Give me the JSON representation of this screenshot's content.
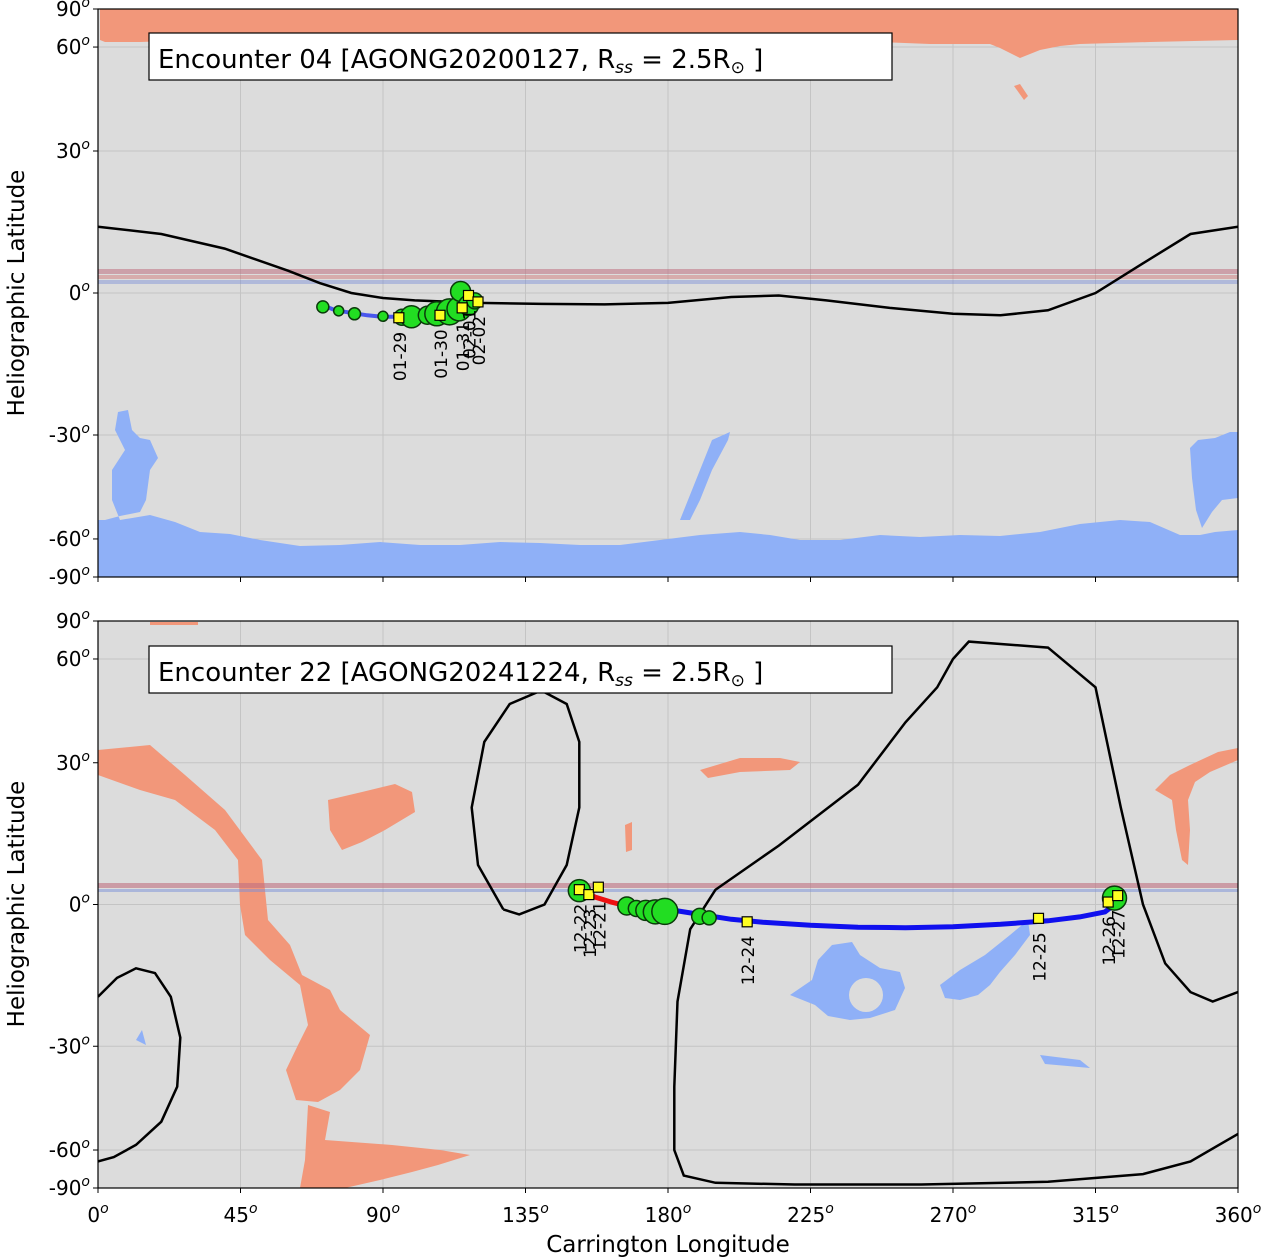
{
  "figure": {
    "xlabel": "Carrington Longitude",
    "ylabel": "Heliographic Latitude",
    "x_tick_values": [
      0,
      45,
      90,
      135,
      180,
      225,
      270,
      315,
      360
    ],
    "y_tick_values": [
      90,
      60,
      30,
      0,
      -30,
      -60,
      -90
    ],
    "tick_suffix": "o",
    "colors": {
      "background": "#dcdcdc",
      "grid": "#c4c4c4",
      "positive_polarity": "#f2977a",
      "negative_polarity": "#8fb0f7",
      "neutral_line": "#000000",
      "trajectory_outbound": "#1010ee",
      "trajectory_inbound": "#ee1010",
      "footpoint_marker": "#22dd22",
      "date_marker": "#ffff22"
    }
  },
  "chart_data": [
    {
      "type": "scatter",
      "panel": "top",
      "title": "Encounter 04 [AGONG20200127, R",
      "title_sub": "ss",
      "title_mid": " = 2.5R",
      "title_sym": "⊙",
      "title_end": " ]",
      "xlim": [
        0,
        360
      ],
      "ylim": [
        -90,
        90
      ],
      "neutral_line": [
        [
          0,
          13.5
        ],
        [
          20,
          12
        ],
        [
          40,
          9
        ],
        [
          60,
          4.5
        ],
        [
          70,
          2
        ],
        [
          80,
          0
        ],
        [
          90,
          -1
        ],
        [
          100,
          -1.5
        ],
        [
          120,
          -2
        ],
        [
          140,
          -2.2
        ],
        [
          160,
          -2.3
        ],
        [
          180,
          -2
        ],
        [
          200,
          -0.8
        ],
        [
          215,
          -0.5
        ],
        [
          230,
          -1.5
        ],
        [
          250,
          -3
        ],
        [
          270,
          -4.2
        ],
        [
          285,
          -4.5
        ],
        [
          300,
          -3.5
        ],
        [
          315,
          0
        ],
        [
          330,
          6
        ],
        [
          345,
          12
        ],
        [
          360,
          13.5
        ]
      ],
      "trajectory": [
        [
          71,
          -2.5
        ],
        [
          75,
          -3.5
        ],
        [
          80,
          -4
        ],
        [
          85,
          -4.5
        ],
        [
          90,
          -4.8
        ],
        [
          95,
          -4.8
        ],
        [
          100,
          -4.6
        ],
        [
          105,
          -4.3
        ],
        [
          110,
          -3.8
        ],
        [
          113,
          -3.3
        ],
        [
          116,
          -2.8
        ],
        [
          119,
          -2
        ],
        [
          121,
          -1.2
        ]
      ],
      "footpoints": [
        {
          "lon": 71,
          "lat": -2.8,
          "r": 6
        },
        {
          "lon": 76,
          "lat": -3.6,
          "r": 5
        },
        {
          "lon": 81,
          "lat": -4.2,
          "r": 6
        },
        {
          "lon": 90,
          "lat": -4.7,
          "r": 5
        },
        {
          "lon": 96,
          "lat": -4.9,
          "r": 8
        },
        {
          "lon": 99,
          "lat": -4.8,
          "r": 11
        },
        {
          "lon": 104,
          "lat": -4.5,
          "r": 9
        },
        {
          "lon": 107,
          "lat": -4.2,
          "r": 12
        },
        {
          "lon": 111,
          "lat": -3.8,
          "r": 13
        },
        {
          "lon": 114,
          "lat": -3.2,
          "r": 12
        },
        {
          "lon": 114.5,
          "lat": 0.3,
          "r": 10
        },
        {
          "lon": 117,
          "lat": -2.5,
          "r": 10
        },
        {
          "lon": 119,
          "lat": -1.6,
          "r": 8
        }
      ],
      "dates": [
        {
          "lon": 95,
          "lat": -5,
          "label": "01-29"
        },
        {
          "lon": 108,
          "lat": -4.5,
          "label": "01-30"
        },
        {
          "lon": 115,
          "lat": -3,
          "label": "01-31"
        },
        {
          "lon": 117,
          "lat": -0.5,
          "label": "02-01"
        },
        {
          "lon": 120,
          "lat": -1.8,
          "label": "02-02"
        }
      ]
    },
    {
      "type": "scatter",
      "panel": "bottom",
      "title": "Encounter 22 [AGONG20241224, R",
      "title_sub": "ss",
      "title_mid": " = 2.5R",
      "title_sym": "⊙",
      "title_end": " ]",
      "xlim": [
        0,
        360
      ],
      "ylim": [
        -90,
        90
      ],
      "neutral_line_segments": [
        [
          [
            128,
            -1
          ],
          [
            120,
            8
          ],
          [
            118,
            20
          ],
          [
            122,
            35
          ],
          [
            130,
            45
          ],
          [
            140,
            49
          ],
          [
            148,
            45
          ],
          [
            152,
            35
          ],
          [
            152,
            20
          ],
          [
            148,
            8
          ],
          [
            141,
            0
          ],
          [
            133,
            -2
          ],
          [
            128,
            -1
          ]
        ],
        [
          [
            0,
            -19
          ],
          [
            6,
            -15
          ],
          [
            12,
            -13
          ],
          [
            18,
            -14
          ],
          [
            23,
            -19
          ],
          [
            26,
            -28
          ],
          [
            25,
            -40
          ],
          [
            20,
            -50
          ],
          [
            12,
            -58
          ],
          [
            5,
            -63
          ],
          [
            0,
            -65
          ]
        ],
        [
          [
            360,
            -54
          ],
          [
            345,
            -65
          ],
          [
            330,
            -72
          ],
          [
            300,
            -78
          ],
          [
            260,
            -81
          ],
          [
            220,
            -81
          ],
          [
            195,
            -79
          ],
          [
            185,
            -73
          ],
          [
            182,
            -60
          ],
          [
            182,
            -40
          ],
          [
            183,
            -20
          ],
          [
            187,
            -5
          ],
          [
            195,
            3
          ],
          [
            215,
            12
          ],
          [
            240,
            25
          ],
          [
            255,
            40
          ],
          [
            265,
            50
          ],
          [
            270,
            60
          ],
          [
            275,
            68
          ],
          [
            300,
            65
          ],
          [
            315,
            50
          ],
          [
            323,
            20
          ],
          [
            330,
            0
          ],
          [
            337,
            -12
          ],
          [
            345,
            -18
          ],
          [
            352,
            -20
          ],
          [
            360,
            -18
          ]
        ]
      ],
      "trajectory_inbound": [
        [
          153,
          2.5
        ],
        [
          157,
          1.5
        ],
        [
          162,
          0.5
        ],
        [
          167,
          -0.3
        ],
        [
          172,
          -0.7
        ],
        [
          177,
          -0.8
        ],
        [
          180,
          -1
        ]
      ],
      "trajectory_outbound": [
        [
          180,
          -1
        ],
        [
          190,
          -2
        ],
        [
          200,
          -3
        ],
        [
          210,
          -3.6
        ],
        [
          225,
          -4.2
        ],
        [
          240,
          -4.6
        ],
        [
          255,
          -4.7
        ],
        [
          270,
          -4.5
        ],
        [
          285,
          -4
        ],
        [
          300,
          -3.3
        ],
        [
          310,
          -2.5
        ],
        [
          318,
          -1.5
        ],
        [
          322,
          0.5
        ]
      ],
      "footpoints": [
        {
          "lon": 152,
          "lat": 2.8,
          "r": 11
        },
        {
          "lon": 167,
          "lat": -0.3,
          "r": 9
        },
        {
          "lon": 170,
          "lat": -0.8,
          "r": 8
        },
        {
          "lon": 173,
          "lat": -1.2,
          "r": 10
        },
        {
          "lon": 176,
          "lat": -1.5,
          "r": 12
        },
        {
          "lon": 179,
          "lat": -1.4,
          "r": 13
        },
        {
          "lon": 190,
          "lat": -2.4,
          "r": 8
        },
        {
          "lon": 193,
          "lat": -2.7,
          "r": 7
        },
        {
          "lon": 321,
          "lat": 1.3,
          "r": 12
        }
      ],
      "dates": [
        {
          "lon": 152,
          "lat": 3,
          "label": "12-22"
        },
        {
          "lon": 155,
          "lat": 2,
          "label": "12-23"
        },
        {
          "lon": 158,
          "lat": 3.5,
          "label": "12-21"
        },
        {
          "lon": 205,
          "lat": -3.5,
          "label": "12-24"
        },
        {
          "lon": 297,
          "lat": -2.8,
          "label": "12-25"
        },
        {
          "lon": 319,
          "lat": 0.5,
          "label": "12-26"
        },
        {
          "lon": 322,
          "lat": 1.8,
          "label": "12-27"
        }
      ]
    }
  ]
}
